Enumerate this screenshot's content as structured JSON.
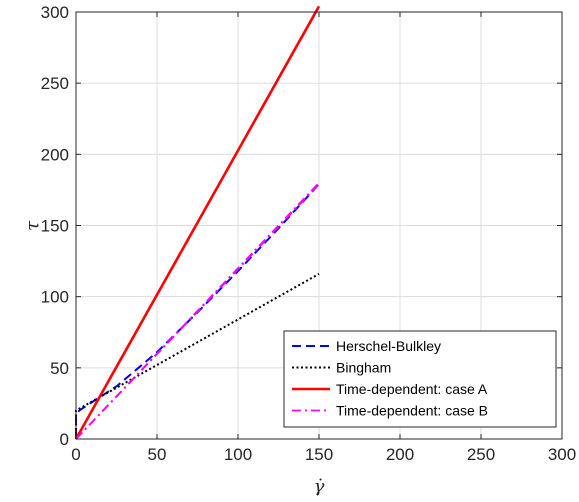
{
  "chart_data": {
    "type": "line",
    "title": "",
    "xlabel": "γ̇",
    "ylabel": "τ",
    "xlim": [
      0,
      300
    ],
    "ylim": [
      0,
      300
    ],
    "xticks": [
      0,
      50,
      100,
      150,
      200,
      250,
      300
    ],
    "yticks": [
      0,
      50,
      100,
      150,
      200,
      250,
      300
    ],
    "xtick_labels": [
      "0",
      "50",
      "100",
      "150",
      "200",
      "250",
      "300"
    ],
    "ytick_labels": [
      "0",
      "50",
      "100",
      "150",
      "200",
      "250",
      "300"
    ],
    "grid": true,
    "legend_position": "bottom-right",
    "series": [
      {
        "name": "Herschel-Bulkley",
        "color": "#0000ff",
        "dash": "dashed",
        "x": [
          0,
          0,
          2,
          10,
          25,
          50,
          75,
          100,
          125,
          150
        ],
        "y": [
          0,
          17,
          20,
          26,
          37,
          61,
          89,
          118,
          148,
          179
        ]
      },
      {
        "name": "Bingham",
        "color": "#000000",
        "dash": "dotted",
        "x": [
          0,
          0,
          150
        ],
        "y": [
          0,
          20,
          116
        ]
      },
      {
        "name": "Time-dependent: case A",
        "color": "#ff0000",
        "dash": "solid",
        "x": [
          0,
          150
        ],
        "y": [
          0,
          304
        ]
      },
      {
        "name": "Time-dependent: case B",
        "color": "#ff00ff",
        "dash": "dashdot",
        "x": [
          0,
          150
        ],
        "y": [
          0,
          179
        ]
      },
      {
        "name": "",
        "color": "#ff00ff",
        "dash": "dashdot",
        "x": [
          0,
          150
        ],
        "y": [
          0,
          180
        ]
      }
    ]
  }
}
